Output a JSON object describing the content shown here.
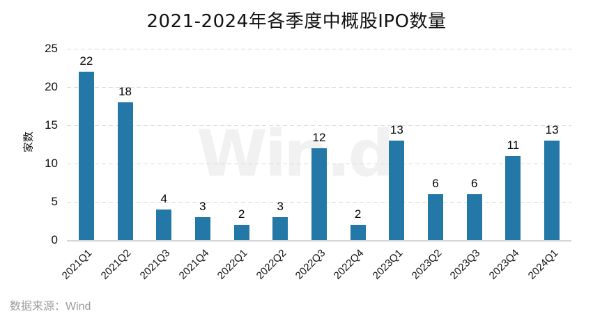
{
  "title": "2021-2024年各季度中概股IPO数量",
  "watermark": "Win.d",
  "source_note": "数据来源：Wind",
  "colors": {
    "bar": "#2478A8",
    "gridline": "#d9d9d9",
    "axis_line": "#d6d6d6",
    "watermark": "#f1f1f1",
    "source_text": "#9c9c9c",
    "text": "#111111"
  },
  "chart_data": {
    "type": "bar",
    "title": "2021-2024年各季度中概股IPO数量",
    "categories": [
      "2021Q1",
      "2021Q2",
      "2021Q3",
      "2021Q4",
      "2022Q1",
      "2022Q2",
      "2022Q3",
      "2022Q4",
      "2023Q1",
      "2023Q2",
      "2023Q3",
      "2023Q4",
      "2024Q1"
    ],
    "values": [
      22,
      18,
      4,
      3,
      2,
      3,
      12,
      2,
      13,
      6,
      6,
      11,
      13
    ],
    "xlabel": "",
    "ylabel": "家数",
    "ylim": [
      0,
      25
    ],
    "yticks": [
      0,
      5,
      10,
      15,
      20,
      25
    ],
    "grid": "horizontal-dashed",
    "legend_position": "none",
    "value_labels": true,
    "xtick_rotation": 45,
    "bar_color": "#2478A8"
  }
}
